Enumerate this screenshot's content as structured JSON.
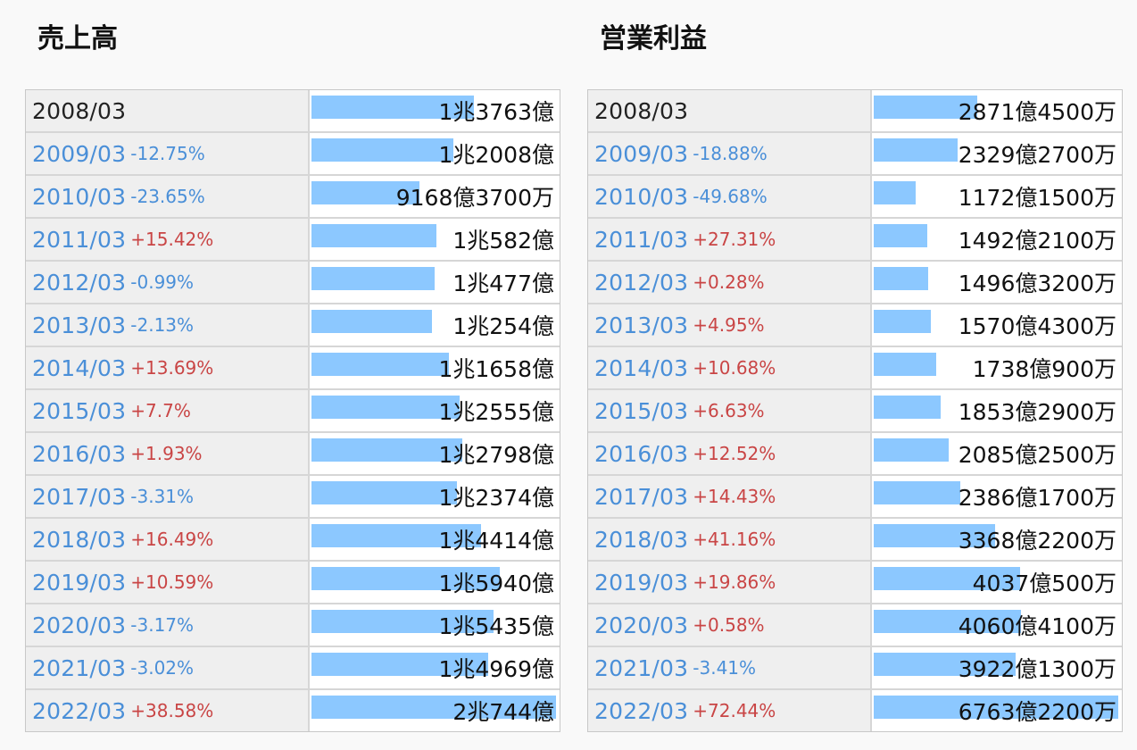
{
  "chart_data": [
    {
      "type": "bar",
      "title": "売上高",
      "categories": [
        "2008/03",
        "2009/03",
        "2010/03",
        "2011/03",
        "2012/03",
        "2013/03",
        "2014/03",
        "2015/03",
        "2016/03",
        "2017/03",
        "2018/03",
        "2019/03",
        "2020/03",
        "2021/03",
        "2022/03"
      ],
      "changes": [
        "",
        "-12.75%",
        "-23.65%",
        "+15.42%",
        "-0.99%",
        "-2.13%",
        "+13.69%",
        "+7.7%",
        "+1.93%",
        "-3.31%",
        "+16.49%",
        "+10.59%",
        "-3.17%",
        "-3.02%",
        "+38.58%"
      ],
      "labels": [
        "1兆3763億",
        "1兆2008億",
        "9168億3700万",
        "1兆582億",
        "1兆477億",
        "1兆254億",
        "1兆1658億",
        "1兆2555億",
        "1兆2798億",
        "1兆2374億",
        "1兆4414億",
        "1兆5940億",
        "1兆5435億",
        "1兆4969億",
        "2兆744億"
      ],
      "values": [
        13763,
        12008,
        9168.37,
        10582,
        10477,
        10254,
        11658,
        12555,
        12798,
        12374,
        14414,
        15940,
        15435,
        14969,
        20744
      ],
      "unit": "億円"
    },
    {
      "type": "bar",
      "title": "営業利益",
      "categories": [
        "2008/03",
        "2009/03",
        "2010/03",
        "2011/03",
        "2012/03",
        "2013/03",
        "2014/03",
        "2015/03",
        "2016/03",
        "2017/03",
        "2018/03",
        "2019/03",
        "2020/03",
        "2021/03",
        "2022/03"
      ],
      "changes": [
        "",
        "-18.88%",
        "-49.68%",
        "+27.31%",
        "+0.28%",
        "+4.95%",
        "+10.68%",
        "+6.63%",
        "+12.52%",
        "+14.43%",
        "+41.16%",
        "+19.86%",
        "+0.58%",
        "-3.41%",
        "+72.44%"
      ],
      "labels": [
        "2871億4500万",
        "2329億2700万",
        "1172億1500万",
        "1492億2100万",
        "1496億3200万",
        "1570億4300万",
        "1738億900万",
        "1853億2900万",
        "2085億2500万",
        "2386億1700万",
        "3368億2200万",
        "4037億500万",
        "4060億4100万",
        "3922億1300万",
        "6763億2200万"
      ],
      "values": [
        2871.45,
        2329.27,
        1172.15,
        1492.21,
        1496.32,
        1570.43,
        1738.09,
        1853.29,
        2085.25,
        2386.17,
        3368.22,
        4037.05,
        4060.41,
        3922.13,
        6763.22
      ],
      "unit": "億円"
    }
  ]
}
